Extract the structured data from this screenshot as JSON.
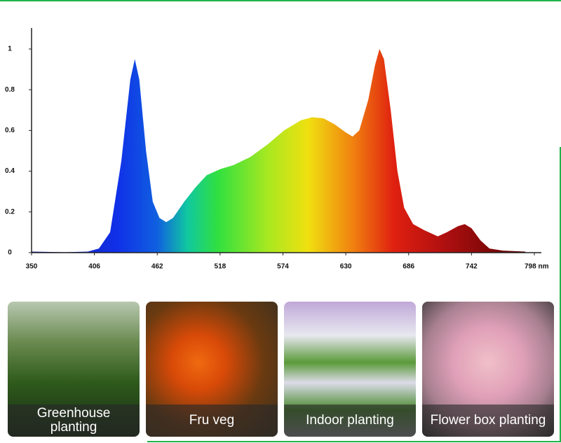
{
  "chart_data": {
    "type": "area",
    "x": [
      350,
      380,
      400,
      410,
      420,
      430,
      438,
      442,
      446,
      452,
      458,
      464,
      470,
      476,
      486,
      496,
      506,
      518,
      530,
      545,
      560,
      575,
      590,
      600,
      610,
      620,
      630,
      636,
      642,
      650,
      656,
      660,
      664,
      670,
      676,
      682,
      690,
      700,
      712,
      720,
      730,
      736,
      742,
      750,
      758,
      770,
      790
    ],
    "values": [
      0.005,
      0.002,
      0.005,
      0.02,
      0.1,
      0.45,
      0.85,
      0.95,
      0.85,
      0.5,
      0.25,
      0.17,
      0.15,
      0.17,
      0.25,
      0.32,
      0.38,
      0.41,
      0.43,
      0.47,
      0.53,
      0.6,
      0.65,
      0.665,
      0.66,
      0.63,
      0.59,
      0.57,
      0.6,
      0.75,
      0.92,
      1.0,
      0.95,
      0.7,
      0.4,
      0.22,
      0.14,
      0.11,
      0.08,
      0.1,
      0.13,
      0.14,
      0.12,
      0.06,
      0.02,
      0.01,
      0.005
    ],
    "xlim": [
      350,
      798
    ],
    "xticks": [
      350,
      406,
      462,
      518,
      574,
      630,
      686,
      742,
      {
        "value": 798,
        "label": "798 nm"
      }
    ],
    "ylim": [
      0,
      1
    ],
    "yticks": [
      0,
      0.2,
      0.4,
      0.6,
      0.8,
      1
    ]
  },
  "cards": [
    {
      "caption": "Greenhouse planting"
    },
    {
      "caption": "Fru veg"
    },
    {
      "caption": "Indoor planting"
    },
    {
      "caption": "Flower box planting"
    }
  ]
}
